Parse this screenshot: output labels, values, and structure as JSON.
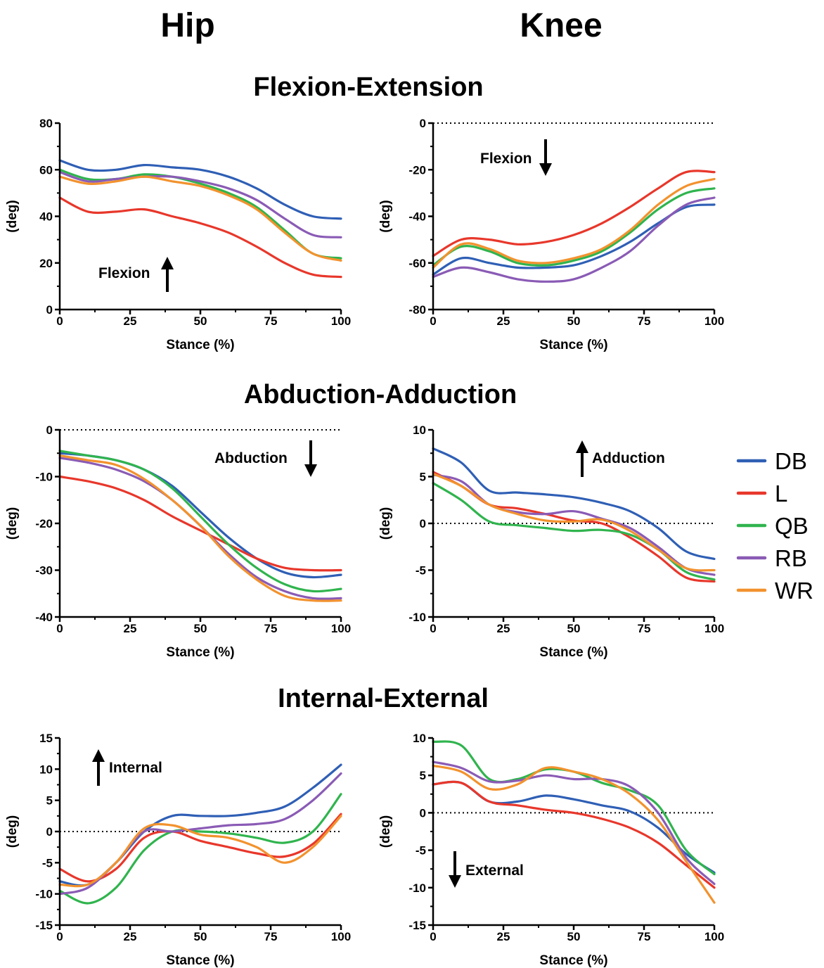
{
  "column_titles": [
    "Hip",
    "Knee"
  ],
  "row_titles": [
    "Flexion-Extension",
    "Abduction-Adduction",
    "Internal-External"
  ],
  "colors": {
    "DB": "#2f5fb5",
    "L": "#e8372b",
    "QB": "#30b44e",
    "RB": "#8a5bb5",
    "WR": "#f2922e"
  },
  "legend": [
    "DB",
    "L",
    "QB",
    "RB",
    "WR"
  ],
  "chart_data": [
    {
      "type": "line",
      "panel": "Hip Flexion-Extension",
      "xlabel": "Stance (%)",
      "ylabel": "(deg)",
      "xlim": [
        0,
        100
      ],
      "ylim": [
        0,
        80
      ],
      "yticks": [
        0,
        20,
        40,
        60,
        80
      ],
      "xticks": [
        0,
        25,
        50,
        75,
        100
      ],
      "zero_line": false,
      "annotation": {
        "text": "Flexion",
        "arrow": "up"
      },
      "x": [
        0,
        10,
        20,
        30,
        40,
        50,
        60,
        70,
        80,
        90,
        100
      ],
      "series": [
        {
          "name": "DB",
          "values": [
            64,
            60,
            60,
            62,
            61,
            60,
            57,
            52,
            45,
            40,
            39
          ]
        },
        {
          "name": "L",
          "values": [
            48,
            42,
            42,
            43,
            40,
            37,
            33,
            27,
            20,
            15,
            14
          ]
        },
        {
          "name": "QB",
          "values": [
            60,
            56,
            56,
            58,
            57,
            54,
            50,
            44,
            34,
            24,
            22
          ]
        },
        {
          "name": "RB",
          "values": [
            59,
            55,
            56,
            57,
            57,
            55,
            52,
            47,
            39,
            32,
            31
          ]
        },
        {
          "name": "WR",
          "values": [
            57,
            54,
            55,
            57,
            55,
            53,
            49,
            43,
            33,
            24,
            21
          ]
        }
      ]
    },
    {
      "type": "line",
      "panel": "Knee Flexion-Extension",
      "xlabel": "Stance (%)",
      "ylabel": "(deg)",
      "xlim": [
        0,
        100
      ],
      "ylim": [
        -80,
        0
      ],
      "yticks": [
        -80,
        -60,
        -40,
        -20,
        0
      ],
      "xticks": [
        0,
        25,
        50,
        75,
        100
      ],
      "zero_line": true,
      "annotation": {
        "text": "Flexion",
        "arrow": "down"
      },
      "x": [
        0,
        10,
        20,
        30,
        40,
        50,
        60,
        70,
        80,
        90,
        100
      ],
      "series": [
        {
          "name": "DB",
          "values": [
            -65,
            -58,
            -60,
            -62,
            -62,
            -61,
            -57,
            -51,
            -43,
            -36,
            -35
          ]
        },
        {
          "name": "L",
          "values": [
            -57,
            -50,
            -50,
            -52,
            -51,
            -48,
            -43,
            -36,
            -28,
            -21,
            -21
          ]
        },
        {
          "name": "QB",
          "values": [
            -61,
            -53,
            -55,
            -60,
            -61,
            -59,
            -55,
            -47,
            -37,
            -30,
            -28
          ]
        },
        {
          "name": "RB",
          "values": [
            -66,
            -62,
            -64,
            -67,
            -68,
            -67,
            -62,
            -55,
            -44,
            -35,
            -32
          ]
        },
        {
          "name": "WR",
          "values": [
            -62,
            -52,
            -54,
            -59,
            -60,
            -58,
            -54,
            -46,
            -35,
            -27,
            -24
          ]
        }
      ]
    },
    {
      "type": "line",
      "panel": "Hip Abduction-Adduction",
      "xlabel": "Stance (%)",
      "ylabel": "(deg)",
      "xlim": [
        0,
        100
      ],
      "ylim": [
        -40,
        0
      ],
      "yticks": [
        -40,
        -30,
        -20,
        -10,
        0
      ],
      "xticks": [
        0,
        25,
        50,
        75,
        100
      ],
      "zero_line": true,
      "annotation": {
        "text": "Abduction",
        "arrow": "down"
      },
      "x": [
        0,
        10,
        20,
        30,
        40,
        50,
        60,
        70,
        80,
        90,
        100
      ],
      "series": [
        {
          "name": "DB",
          "values": [
            -5,
            -5.5,
            -6.5,
            -8.5,
            -12,
            -17.5,
            -23,
            -27.5,
            -30.5,
            -31.5,
            -31
          ]
        },
        {
          "name": "L",
          "values": [
            -10,
            -11,
            -12.5,
            -15,
            -18.5,
            -21.5,
            -24.5,
            -27.5,
            -29.5,
            -30,
            -30
          ]
        },
        {
          "name": "QB",
          "values": [
            -4.5,
            -5.5,
            -6.5,
            -8.5,
            -12.5,
            -18.5,
            -24.5,
            -29.5,
            -33,
            -34.5,
            -34
          ]
        },
        {
          "name": "RB",
          "values": [
            -6,
            -7,
            -8.5,
            -11,
            -15,
            -20.5,
            -26.5,
            -31.5,
            -34.5,
            -36,
            -36
          ]
        },
        {
          "name": "WR",
          "values": [
            -5.5,
            -6.5,
            -7.5,
            -10.5,
            -15,
            -20.5,
            -27,
            -32,
            -35.5,
            -36.5,
            -36.5
          ]
        }
      ]
    },
    {
      "type": "line",
      "panel": "Knee Abduction-Adduction",
      "xlabel": "Stance (%)",
      "ylabel": "(deg)",
      "xlim": [
        0,
        100
      ],
      "ylim": [
        -10,
        10
      ],
      "yticks": [
        -10,
        -5,
        0,
        5,
        10
      ],
      "xticks": [
        0,
        25,
        50,
        75,
        100
      ],
      "zero_line": true,
      "annotation": {
        "text": "Adduction",
        "arrow": "up"
      },
      "x": [
        0,
        10,
        20,
        30,
        40,
        50,
        60,
        70,
        80,
        90,
        100
      ],
      "series": [
        {
          "name": "DB",
          "values": [
            8,
            6.5,
            3.5,
            3.3,
            3.1,
            2.8,
            2.2,
            1.3,
            -0.5,
            -3,
            -3.8
          ]
        },
        {
          "name": "L",
          "values": [
            5.5,
            4,
            2,
            1.6,
            1,
            0.3,
            0,
            -1.5,
            -3.5,
            -5.8,
            -6.2
          ]
        },
        {
          "name": "QB",
          "values": [
            4.3,
            2.5,
            0.2,
            -0.2,
            -0.5,
            -0.8,
            -0.7,
            -1.2,
            -2.8,
            -5.2,
            -6
          ]
        },
        {
          "name": "RB",
          "values": [
            5.2,
            4.5,
            2,
            1.2,
            1,
            1.3,
            0.5,
            -0.5,
            -2.5,
            -4.8,
            -5.5
          ]
        },
        {
          "name": "WR",
          "values": [
            5.3,
            4,
            2,
            1,
            0.3,
            0.2,
            0.4,
            -0.8,
            -2.8,
            -4.8,
            -5
          ]
        }
      ]
    },
    {
      "type": "line",
      "panel": "Hip Internal-External",
      "xlabel": "Stance (%)",
      "ylabel": "(deg)",
      "xlim": [
        0,
        100
      ],
      "ylim": [
        -15,
        15
      ],
      "yticks": [
        -15,
        -10,
        -5,
        0,
        5,
        10,
        15
      ],
      "xticks": [
        0,
        25,
        50,
        75,
        100
      ],
      "zero_line": true,
      "annotation": {
        "text": "Internal",
        "arrow": "up"
      },
      "x": [
        0,
        10,
        20,
        30,
        40,
        50,
        60,
        70,
        80,
        90,
        100
      ],
      "series": [
        {
          "name": "DB",
          "values": [
            -8,
            -8.5,
            -5,
            0,
            2.5,
            2.5,
            2.5,
            3,
            4,
            7,
            10.7
          ]
        },
        {
          "name": "L",
          "values": [
            -6,
            -8,
            -6,
            -1,
            0,
            -1.5,
            -2.5,
            -3.5,
            -4,
            -2,
            2.8
          ]
        },
        {
          "name": "QB",
          "values": [
            -9.5,
            -11.5,
            -9,
            -3,
            0,
            0,
            -0.3,
            -1,
            -1.8,
            0,
            6
          ]
        },
        {
          "name": "RB",
          "values": [
            -10,
            -9,
            -5,
            0,
            0,
            0.5,
            1,
            1.2,
            2,
            5,
            9.3
          ]
        },
        {
          "name": "WR",
          "values": [
            -8.5,
            -8.5,
            -5,
            0.5,
            1,
            -0.5,
            -1,
            -2.5,
            -5,
            -2.5,
            2.5
          ]
        }
      ]
    },
    {
      "type": "line",
      "panel": "Knee Internal-External",
      "xlabel": "Stance (%)",
      "ylabel": "(deg)",
      "xlim": [
        0,
        100
      ],
      "ylim": [
        -15,
        10
      ],
      "yticks": [
        -15,
        -10,
        -5,
        0,
        5,
        10
      ],
      "xticks": [
        0,
        25,
        50,
        75,
        100
      ],
      "zero_line": true,
      "annotation": {
        "text": "External",
        "arrow": "down"
      },
      "x": [
        0,
        10,
        20,
        30,
        40,
        50,
        60,
        70,
        80,
        90,
        100
      ],
      "series": [
        {
          "name": "DB",
          "values": [
            3.8,
            4,
            1.5,
            1.5,
            2.3,
            1.8,
            1,
            0.2,
            -2,
            -5.5,
            -8
          ]
        },
        {
          "name": "L",
          "values": [
            3.8,
            4,
            1.5,
            1,
            0.4,
            0,
            -0.8,
            -2,
            -4,
            -7,
            -10
          ]
        },
        {
          "name": "QB",
          "values": [
            9.5,
            9,
            4.5,
            4.5,
            5.8,
            5.5,
            4,
            3,
            1,
            -5,
            -8.2
          ]
        },
        {
          "name": "RB",
          "values": [
            6.8,
            6,
            4.2,
            4.3,
            5,
            4.5,
            4.5,
            3.5,
            0,
            -6,
            -9.5
          ]
        },
        {
          "name": "WR",
          "values": [
            6.3,
            5.5,
            3.2,
            3.8,
            6,
            5.5,
            4.5,
            2.5,
            -1,
            -6.5,
            -12
          ]
        }
      ]
    }
  ]
}
